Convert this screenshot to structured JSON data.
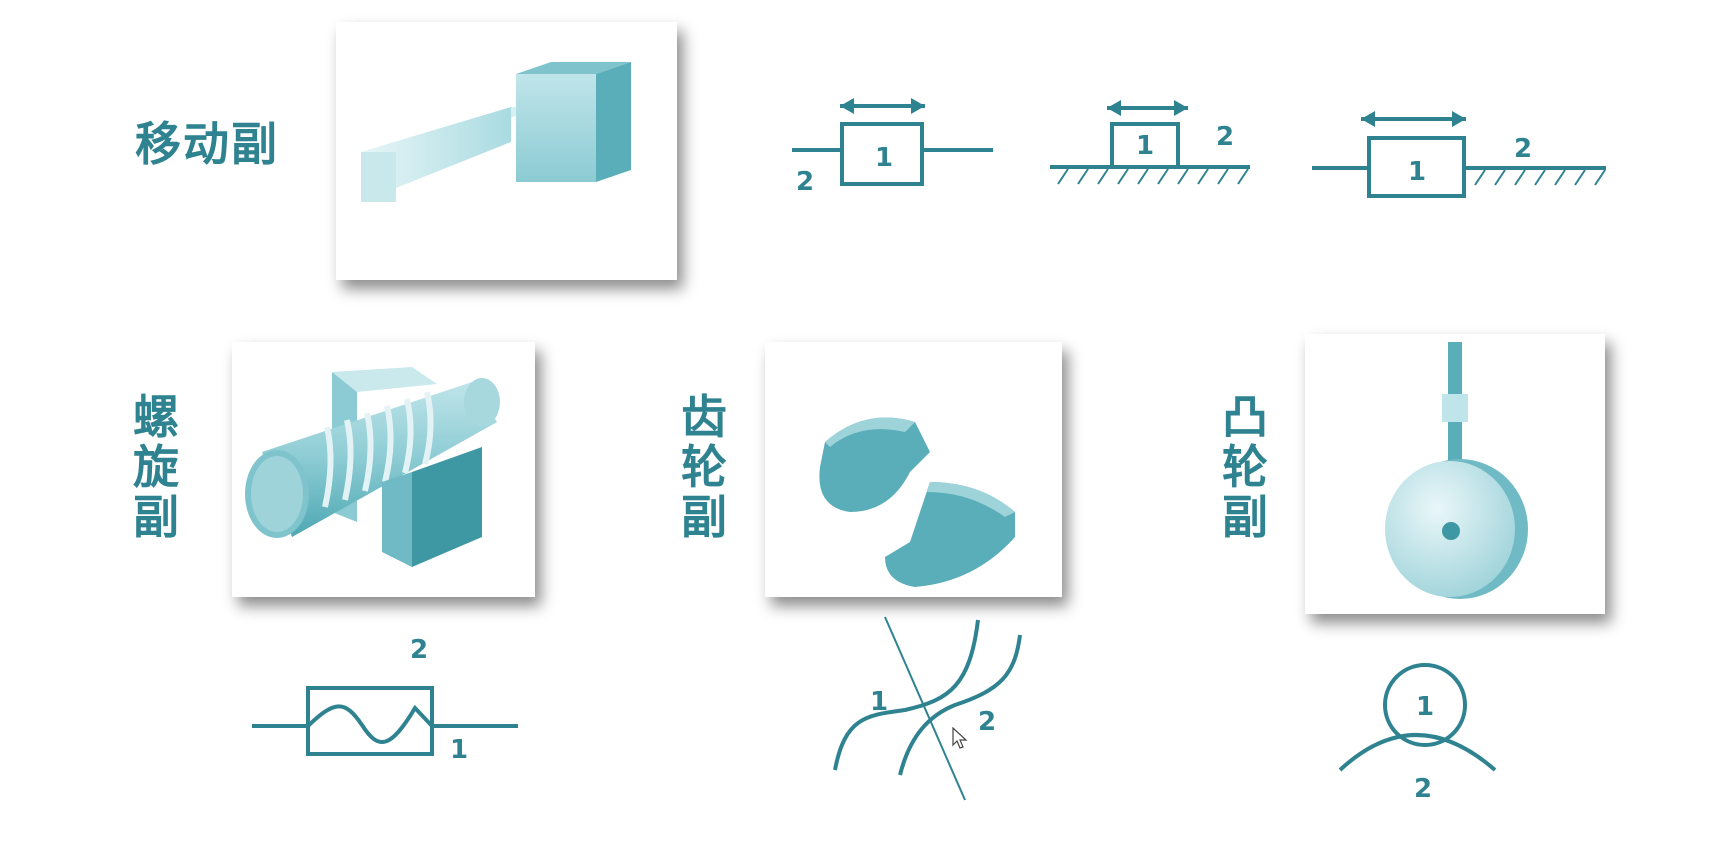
{
  "colors": {
    "accent": "#2f8391",
    "solid_light": "#d8eef1",
    "solid_mid": "#8ccbd3",
    "solid_dark": "#4ea8b3"
  },
  "labels": {
    "prismatic": "移动副",
    "screw": "螺旋副",
    "gear": "齿轮副",
    "cam": "凸轮副"
  },
  "symbols": {
    "prismatic_a": {
      "block": "1",
      "ground": "2"
    },
    "prismatic_b": {
      "block": "1",
      "ground": "2"
    },
    "prismatic_c": {
      "block": "1",
      "ground": "2"
    },
    "screw": {
      "nut": "2",
      "screw": "1"
    },
    "gear": {
      "gear1": "1",
      "gear2": "2"
    },
    "cam": {
      "follower": "1",
      "cam": "2"
    }
  }
}
